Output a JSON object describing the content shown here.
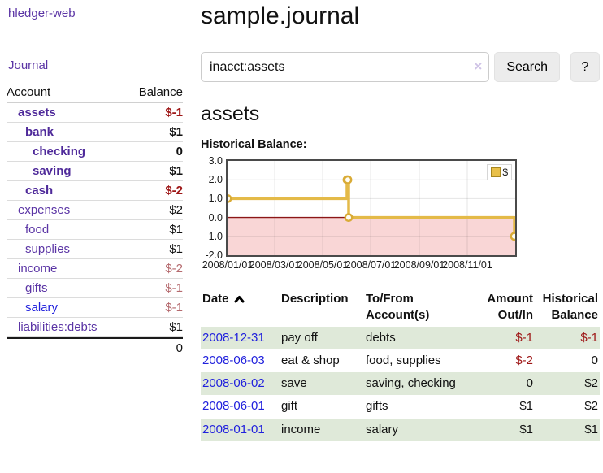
{
  "brand": {
    "label": "hledger-web"
  },
  "nav": {
    "journal": "Journal"
  },
  "sidebar": {
    "account_header": "Account",
    "balance_header": "Balance",
    "accounts": [
      {
        "name": "assets",
        "depth": 1,
        "name_style": "bold",
        "balance": "$-1",
        "balance_style": "negstrong"
      },
      {
        "name": "bank",
        "depth": 2,
        "name_style": "bold",
        "balance": "$1",
        "balance_style": "strong"
      },
      {
        "name": "checking",
        "depth": 3,
        "name_style": "bold",
        "balance": "0",
        "balance_style": "strong"
      },
      {
        "name": "saving",
        "depth": 3,
        "name_style": "bold",
        "balance": "$1",
        "balance_style": "strong"
      },
      {
        "name": "cash",
        "depth": 2,
        "name_style": "bold",
        "balance": "$-2",
        "balance_style": "negstrong"
      },
      {
        "name": "expenses",
        "depth": 1,
        "name_style": "plain",
        "balance": "$2",
        "balance_style": "plain"
      },
      {
        "name": "food",
        "depth": 2,
        "name_style": "plain",
        "balance": "$1",
        "balance_style": "plain"
      },
      {
        "name": "supplies",
        "depth": 2,
        "name_style": "plain",
        "balance": "$1",
        "balance_style": "plain"
      },
      {
        "name": "income",
        "depth": 1,
        "name_style": "plain",
        "balance": "$-2",
        "balance_style": "negsoft"
      },
      {
        "name": "gifts",
        "depth": 2,
        "name_style": "plain",
        "balance": "$-1",
        "balance_style": "negsoft"
      },
      {
        "name": "salary",
        "depth": 2,
        "name_style": "blue",
        "balance": "$-1",
        "balance_style": "negsoft"
      },
      {
        "name": "liabilities:debts",
        "depth": 1,
        "name_style": "plain",
        "balance": "$1",
        "balance_style": "plain"
      }
    ],
    "total": "0"
  },
  "header": {
    "title": "sample.journal"
  },
  "search": {
    "value": "inacct:assets",
    "clear_label": "×",
    "search_button": "Search",
    "help_button": "?"
  },
  "account_page": {
    "title": "assets",
    "chart_heading": "Historical Balance:"
  },
  "chart_data": {
    "type": "line",
    "step": true,
    "title": "Historical Balance:",
    "series": [
      {
        "name": "$",
        "color": "#e4ba48",
        "points": [
          [
            "2008-01-01",
            1
          ],
          [
            "2008-06-01",
            2
          ],
          [
            "2008-06-02",
            2
          ],
          [
            "2008-06-03",
            0
          ],
          [
            "2008-12-31",
            -1
          ]
        ]
      }
    ],
    "x_range": [
      "2008-01-01",
      "2009-01-01"
    ],
    "x_tick_labels": [
      "2008/01/01",
      "2008/03/01",
      "2008/05/01",
      "2008/07/01",
      "2008/09/01",
      "2008/11/01"
    ],
    "y_ticks": [
      3.0,
      2.0,
      1.0,
      0.0,
      -1.0,
      -2.0
    ],
    "ylim": [
      -2,
      3
    ],
    "grid": true,
    "legend": {
      "entries": [
        "$"
      ],
      "position": "top-right"
    },
    "colors": {
      "negative_fill": "#f9d6d6",
      "zero_line": "#8c1616",
      "border": "#4a4a4a",
      "marker_stroke": "#d9ab36",
      "marker_fill": "#fffdf5"
    }
  },
  "register": {
    "headers": {
      "date": "Date",
      "description": "Description",
      "account": "To/From Account(s)",
      "amount": "Amount Out/In",
      "balance": "Historical Balance"
    },
    "rows": [
      {
        "date": "2008-12-31",
        "description": "pay off",
        "accounts": "debts",
        "amount": "$-1",
        "amount_neg": true,
        "balance": "$-1",
        "balance_neg": true
      },
      {
        "date": "2008-06-03",
        "description": "eat & shop",
        "accounts": "food, supplies",
        "amount": "$-2",
        "amount_neg": true,
        "balance": "0",
        "balance_neg": false
      },
      {
        "date": "2008-06-02",
        "description": "save",
        "accounts": "saving, checking",
        "amount": "0",
        "amount_neg": false,
        "balance": "$2",
        "balance_neg": false
      },
      {
        "date": "2008-06-01",
        "description": "gift",
        "accounts": "gifts",
        "amount": "$1",
        "amount_neg": false,
        "balance": "$2",
        "balance_neg": false
      },
      {
        "date": "2008-01-01",
        "description": "income",
        "accounts": "salary",
        "amount": "$1",
        "amount_neg": false,
        "balance": "$1",
        "balance_neg": false
      }
    ]
  }
}
